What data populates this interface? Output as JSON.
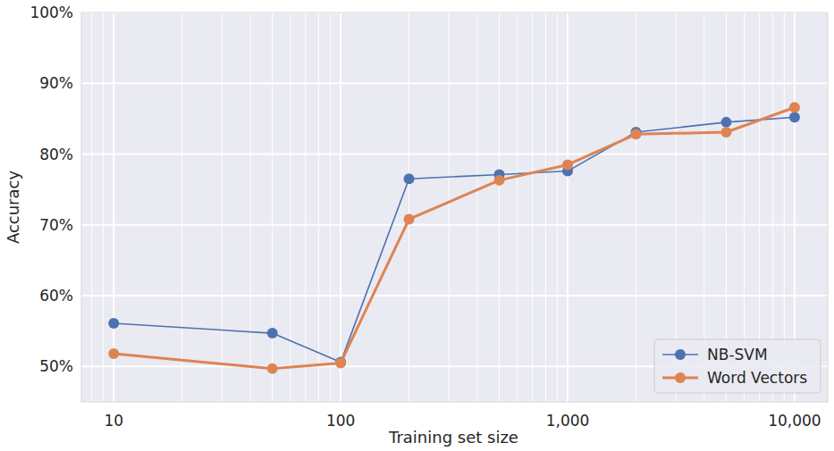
{
  "chart_data": {
    "type": "line",
    "x_label": "Training set size",
    "y_label": "Accuracy",
    "x": [
      10,
      50,
      100,
      200,
      500,
      1000,
      2000,
      5000,
      10000
    ],
    "series": [
      {
        "name": "NB-SVM",
        "color": "#4c72b0",
        "marker": "circle",
        "values": [
          56.1,
          54.7,
          50.6,
          76.5,
          77.1,
          77.6,
          83.1,
          84.5,
          85.2
        ]
      },
      {
        "name": "Word Vectors",
        "color": "#dd8452",
        "marker": "circle",
        "values": [
          51.8,
          49.7,
          50.5,
          70.8,
          76.3,
          78.5,
          82.8,
          83.1,
          86.6
        ]
      }
    ],
    "xlim": [
      7.2,
      14000
    ],
    "ylim": [
      45,
      100
    ],
    "xticks": [
      10,
      100,
      {
        "value": 1000,
        "label": "1,000"
      },
      {
        "value": 10000,
        "label": "10,000"
      }
    ],
    "yticks": [
      {
        "value": 50,
        "label": "50%"
      },
      {
        "value": 60,
        "label": "60%"
      },
      {
        "value": 70,
        "label": "70%"
      },
      {
        "value": 80,
        "label": "80%"
      },
      {
        "value": 90,
        "label": "90%"
      },
      {
        "value": 100,
        "label": "100%"
      }
    ],
    "log": "x",
    "grid": true,
    "legend": "lower right"
  }
}
